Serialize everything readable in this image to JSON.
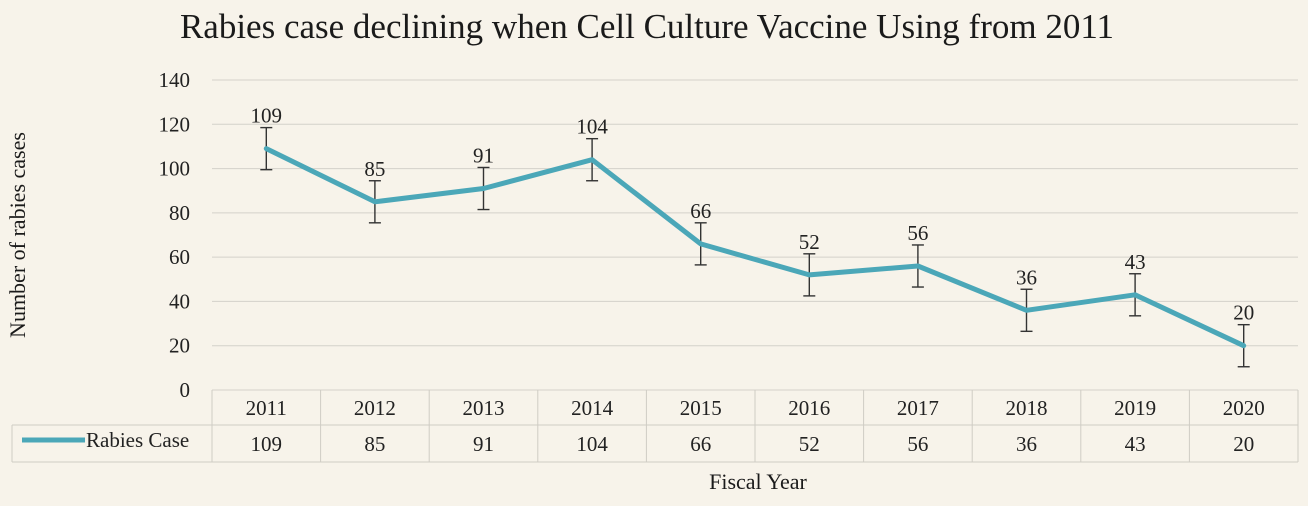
{
  "chart_data": {
    "type": "line",
    "title": "Rabies case declining  when  Cell Culture  Vaccine Using   from 2011",
    "xlabel": "Fiscal Year",
    "ylabel": "Number of rabies cases",
    "ylim": [
      0,
      140
    ],
    "yticks": [
      "0",
      "20",
      "40",
      "60",
      "80",
      "100",
      "120",
      "140"
    ],
    "categories": [
      "2011",
      "2012",
      "2013",
      "2014",
      "2015",
      "2016",
      "2017",
      "2018",
      "2019",
      "2020"
    ],
    "series": [
      {
        "name": "Rabies Case",
        "color": "#4ba7b8",
        "values": [
          109,
          85,
          91,
          104,
          66,
          52,
          56,
          36,
          43,
          20
        ],
        "labels": [
          "109",
          "85",
          "91",
          "104",
          "66",
          "52",
          "56",
          "36",
          "43",
          "20"
        ],
        "error": 9.5
      }
    ],
    "grid": true,
    "data_table": true
  }
}
